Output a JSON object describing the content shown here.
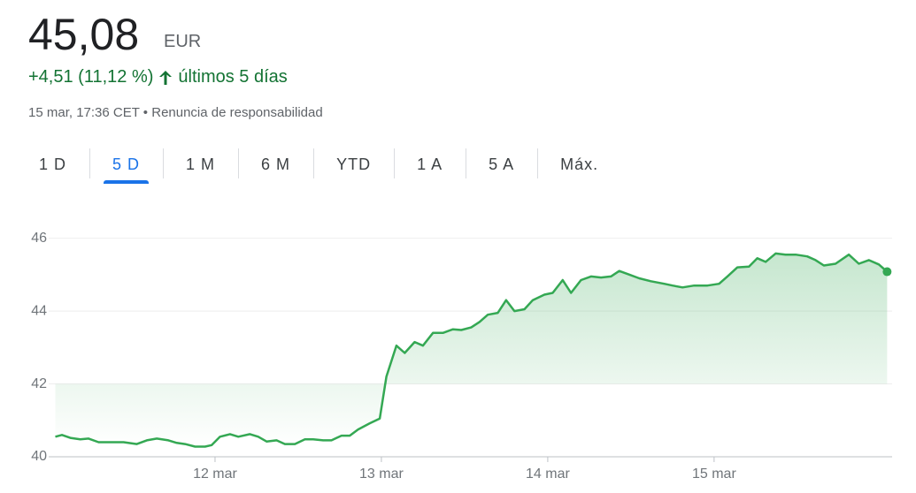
{
  "header": {
    "price": "45,08",
    "currency": "EUR",
    "change": "+4,51 (11,12 %)",
    "period": "últimos 5 días",
    "timestamp": "15 mar, 17:36 CET",
    "separator": "•",
    "disclaimer": "Renuncia de responsabilidad"
  },
  "tabs": {
    "items": [
      "1 D",
      "5 D",
      "1 M",
      "6 M",
      "YTD",
      "1 A",
      "5 A",
      "Máx."
    ],
    "active": 1
  },
  "chart_data": {
    "type": "line",
    "color": "#34a853",
    "grid": true,
    "x": [
      11.04,
      11.08,
      11.13,
      11.19,
      11.24,
      11.3,
      11.37,
      11.45,
      11.53,
      11.59,
      11.65,
      11.72,
      11.77,
      11.82,
      11.88,
      11.94,
      11.98,
      12.03,
      12.09,
      12.14,
      12.21,
      12.26,
      12.31,
      12.37,
      12.42,
      12.48,
      12.54,
      12.59,
      12.65,
      12.7,
      12.76,
      12.81,
      12.86,
      12.93,
      12.99,
      13.03,
      13.09,
      13.14,
      13.2,
      13.25,
      13.31,
      13.37,
      13.43,
      13.48,
      13.54,
      13.59,
      13.64,
      13.7,
      13.75,
      13.8,
      13.86,
      13.91,
      13.98,
      14.03,
      14.09,
      14.14,
      14.2,
      14.26,
      14.32,
      14.38,
      14.43,
      14.49,
      14.55,
      14.62,
      14.7,
      14.75,
      14.81,
      14.88,
      14.96,
      15.03,
      15.08,
      15.14,
      15.21,
      15.26,
      15.31,
      15.37,
      15.43,
      15.49,
      15.56,
      15.61,
      15.66,
      15.73,
      15.81,
      15.87,
      15.93,
      15.99,
      16.04
    ],
    "values": [
      40.55,
      40.6,
      40.52,
      40.48,
      40.5,
      40.4,
      40.4,
      40.4,
      40.35,
      40.45,
      40.5,
      40.45,
      40.38,
      40.35,
      40.28,
      40.28,
      40.32,
      40.55,
      40.62,
      40.55,
      40.62,
      40.55,
      40.42,
      40.45,
      40.35,
      40.35,
      40.48,
      40.48,
      40.45,
      40.45,
      40.58,
      40.58,
      40.75,
      40.92,
      41.05,
      42.2,
      43.05,
      42.85,
      43.15,
      43.05,
      43.4,
      43.4,
      43.5,
      43.48,
      43.55,
      43.7,
      43.9,
      43.95,
      44.3,
      44.0,
      44.05,
      44.3,
      44.45,
      44.5,
      44.85,
      44.5,
      44.85,
      44.95,
      44.92,
      44.95,
      45.1,
      45.0,
      44.9,
      44.82,
      44.75,
      44.7,
      44.65,
      44.7,
      44.7,
      44.75,
      44.95,
      45.2,
      45.22,
      45.45,
      45.35,
      45.58,
      45.55,
      45.55,
      45.5,
      45.4,
      45.25,
      45.3,
      45.55,
      45.3,
      45.4,
      45.28,
      45.08
    ],
    "xlim": [
      11,
      16.07
    ],
    "ylim": [
      40,
      46.5
    ],
    "xticks": [
      {
        "value": 12,
        "label": "12 mar"
      },
      {
        "value": 13,
        "label": "13 mar"
      },
      {
        "value": 14,
        "label": "14 mar"
      },
      {
        "value": 15,
        "label": "15 mar"
      }
    ],
    "yticks": [
      40,
      42,
      44,
      46
    ]
  }
}
